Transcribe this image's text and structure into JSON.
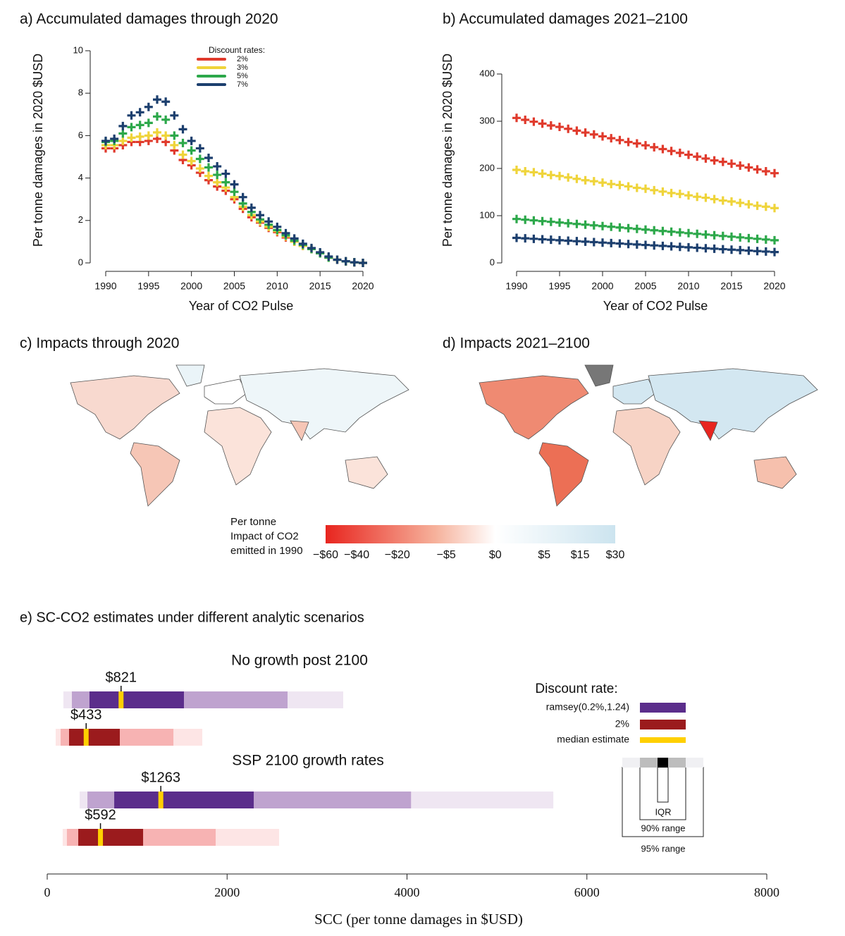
{
  "chart_data": [
    {
      "type": "scatter",
      "title": "a)  Accumulated damages through 2020",
      "y_label": "Per tonne damages in 2020 $USD",
      "x_label": "Year of CO2 Pulse",
      "x": [
        1990,
        1991,
        1992,
        1993,
        1994,
        1995,
        1996,
        1997,
        1998,
        1999,
        2000,
        2001,
        2002,
        2003,
        2004,
        2005,
        2006,
        2007,
        2008,
        2009,
        2010,
        2011,
        2012,
        2013,
        2014,
        2015,
        2016,
        2017,
        2018,
        2019,
        2020
      ],
      "xlim": [
        1990,
        2020
      ],
      "xticks": [
        1990,
        1995,
        2000,
        2005,
        2010,
        2015,
        2020
      ],
      "ylim": [
        0,
        10
      ],
      "yticks": [
        0,
        2,
        4,
        6,
        8,
        10
      ],
      "legend_title": "Discount rates:",
      "series": [
        {
          "name": "2%",
          "color": "#e03a2c",
          "values": [
            5.4,
            5.4,
            5.55,
            5.7,
            5.7,
            5.75,
            5.85,
            5.7,
            5.3,
            4.85,
            4.6,
            4.25,
            3.9,
            3.6,
            3.4,
            3.0,
            2.55,
            2.15,
            1.9,
            1.65,
            1.45,
            1.2,
            1.0,
            0.8,
            0.65,
            0.45,
            0.25,
            0.15,
            0.07,
            0.03,
            0.0
          ]
        },
        {
          "name": "3%",
          "color": "#efd43a",
          "values": [
            5.55,
            5.55,
            5.75,
            5.9,
            5.95,
            6.0,
            6.15,
            6.0,
            5.55,
            5.1,
            4.8,
            4.45,
            4.1,
            3.8,
            3.55,
            3.1,
            2.65,
            2.25,
            1.95,
            1.7,
            1.5,
            1.25,
            1.0,
            0.8,
            0.65,
            0.45,
            0.25,
            0.15,
            0.07,
            0.03,
            0.0
          ]
        },
        {
          "name": "5%",
          "color": "#2ca84a",
          "values": [
            5.7,
            5.75,
            6.1,
            6.4,
            6.5,
            6.6,
            6.9,
            6.75,
            6.0,
            5.65,
            5.3,
            4.9,
            4.5,
            4.15,
            3.8,
            3.35,
            2.8,
            2.4,
            2.05,
            1.8,
            1.55,
            1.3,
            1.05,
            0.85,
            0.65,
            0.45,
            0.25,
            0.15,
            0.07,
            0.03,
            0.0
          ]
        },
        {
          "name": "7%",
          "color": "#1c3f6e",
          "values": [
            5.75,
            5.85,
            6.45,
            6.95,
            7.1,
            7.35,
            7.7,
            7.6,
            6.95,
            6.3,
            5.75,
            5.4,
            4.95,
            4.55,
            4.2,
            3.7,
            3.1,
            2.6,
            2.25,
            1.95,
            1.7,
            1.4,
            1.15,
            0.9,
            0.7,
            0.5,
            0.3,
            0.15,
            0.08,
            0.03,
            0.0
          ]
        }
      ]
    },
    {
      "type": "scatter",
      "title": "b)  Accumulated damages 2021–2100",
      "y_label": "Per tonne damages in 2020 $USD",
      "x_label": "Year of CO2 Pulse",
      "x": [
        1990,
        1991,
        1992,
        1993,
        1994,
        1995,
        1996,
        1997,
        1998,
        1999,
        2000,
        2001,
        2002,
        2003,
        2004,
        2005,
        2006,
        2007,
        2008,
        2009,
        2010,
        2011,
        2012,
        2013,
        2014,
        2015,
        2016,
        2017,
        2018,
        2019,
        2020
      ],
      "xlim": [
        1990,
        2020
      ],
      "xticks": [
        1990,
        1995,
        2000,
        2005,
        2010,
        2015,
        2020
      ],
      "ylim": [
        0,
        400
      ],
      "yticks": [
        0,
        100,
        200,
        300,
        400
      ],
      "series": [
        {
          "name": "2%",
          "color": "#e03a2c",
          "values": [
            307,
            303,
            299,
            295,
            291,
            288,
            284,
            280,
            276,
            272,
            268,
            264,
            260,
            256,
            253,
            249,
            245,
            241,
            237,
            233,
            229,
            225,
            221,
            217,
            214,
            210,
            206,
            202,
            198,
            194,
            190
          ]
        },
        {
          "name": "3%",
          "color": "#efd43a",
          "values": [
            197,
            194,
            192,
            189,
            186,
            184,
            181,
            178,
            175,
            173,
            170,
            167,
            165,
            162,
            159,
            157,
            154,
            151,
            148,
            146,
            143,
            140,
            138,
            135,
            132,
            130,
            127,
            124,
            121,
            119,
            116
          ]
        },
        {
          "name": "5%",
          "color": "#2ca84a",
          "values": [
            93,
            91.5,
            90,
            88.5,
            87,
            85.5,
            84,
            82.5,
            81,
            79.5,
            78,
            76.5,
            75,
            73.5,
            72,
            70.5,
            69,
            67.5,
            66,
            64.5,
            63,
            61.5,
            60,
            58.5,
            57,
            55.5,
            54,
            52.5,
            51,
            49.5,
            48
          ]
        },
        {
          "name": "7%",
          "color": "#1c3f6e",
          "values": [
            53,
            52,
            51,
            50,
            49,
            48,
            47,
            46,
            45,
            44,
            43,
            42,
            41,
            40,
            39,
            38,
            37,
            36,
            35,
            34,
            33,
            32,
            31,
            30,
            29,
            28,
            27,
            26,
            25,
            24,
            23
          ]
        }
      ]
    },
    {
      "type": "map",
      "title": "c) Impacts through 2020",
      "colorbar": {
        "title": [
          "Per tonne",
          "Impact of CO2",
          "emitted in 1990"
        ],
        "clim": [
          -60,
          30
        ],
        "scale": "signed-sqrt",
        "colors": [
          "#e8251f",
          "#f6b29c",
          "#ffffff",
          "#cce4ef"
        ],
        "ticks": [
          {
            "value": -60,
            "label": "−$60"
          },
          {
            "value": -40,
            "label": "−$40"
          },
          {
            "value": -20,
            "label": "−$20"
          },
          {
            "value": -5,
            "label": "−$5"
          },
          {
            "value": 0,
            "label": "$0"
          },
          {
            "value": 5,
            "label": "$5"
          },
          {
            "value": 15,
            "label": "$15"
          },
          {
            "value": 30,
            "label": "$30"
          }
        ]
      }
    },
    {
      "type": "map",
      "title": "d) Impacts 2021–2100"
    },
    {
      "type": "range",
      "title": "e) SC-CO2 estimates under different analytic scenarios",
      "x_label": "SCC (per tonne damages in $USD)",
      "xlim": [
        0,
        8000
      ],
      "xticks": [
        0,
        2000,
        4000,
        6000,
        8000
      ],
      "categories": [
        "No growth post 2100",
        "SSP 2100 growth rates"
      ],
      "legend_title": "Discount rate:",
      "median_name": "median estimate",
      "median_color": "#ffd000",
      "range_labels": {
        "iqr": "IQR",
        "r90": "90% range",
        "r95": "95% range"
      },
      "series": [
        {
          "name": "ramsey(0.2%,1.24)",
          "colors": [
            "#5b2d8b",
            "#bfa3cf",
            "#efe6f2"
          ],
          "low95": [
            180,
            360
          ],
          "low90": [
            274,
            447
          ],
          "q1": [
            470,
            745
          ],
          "median": [
            821,
            1263
          ],
          "q3": [
            1520,
            2296
          ],
          "high90": [
            2672,
            4045
          ],
          "high95": [
            3291,
            5627
          ],
          "value_labels": [
            "$821",
            "$1263"
          ]
        },
        {
          "name": "2%",
          "colors": [
            "#9b1b1d",
            "#f7b3b3",
            "#fde5e5"
          ],
          "low95": [
            94,
            172
          ],
          "low90": [
            149,
            219
          ],
          "q1": [
            243,
            345
          ],
          "median": [
            433,
            592
          ],
          "q3": [
            807,
            1066
          ],
          "high90": [
            1403,
            1873
          ],
          "high95": [
            1724,
            2578
          ],
          "value_labels": [
            "$433",
            "$592"
          ]
        }
      ]
    }
  ]
}
